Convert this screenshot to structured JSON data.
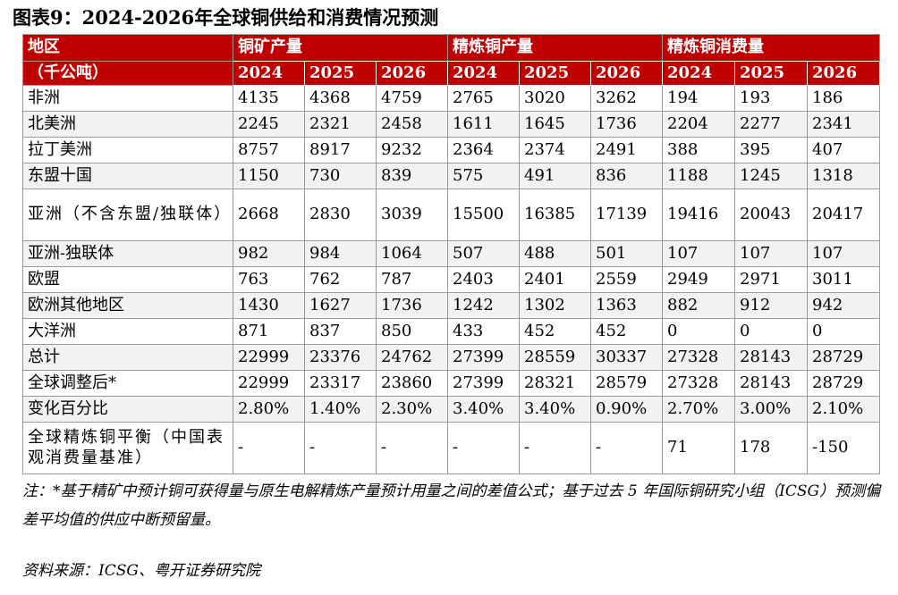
{
  "title": "图表9：2024-2026年全球铜供给和消费情况预测",
  "header": {
    "region_label_line1": "地区",
    "region_label_line2": "（千公吨）",
    "groups": [
      "铜矿产量",
      "精炼铜产量",
      "精炼铜消费量"
    ],
    "years": [
      "2024",
      "2025",
      "2026",
      "2024",
      "2025",
      "2026",
      "2024",
      "2025",
      "2026"
    ]
  },
  "rows": [
    {
      "region": "非洲",
      "values": [
        "4135",
        "4368",
        "4759",
        "2765",
        "3020",
        "3262",
        "194",
        "193",
        "186"
      ]
    },
    {
      "region": "北美洲",
      "values": [
        "2245",
        "2321",
        "2458",
        "1611",
        "1645",
        "1736",
        "2204",
        "2277",
        "2341"
      ]
    },
    {
      "region": "拉丁美洲",
      "values": [
        "8757",
        "8917",
        "9232",
        "2364",
        "2374",
        "2491",
        "388",
        "395",
        "407"
      ]
    },
    {
      "region": "东盟十国",
      "values": [
        "1150",
        "730",
        "839",
        "575",
        "491",
        "836",
        "1188",
        "1245",
        "1318"
      ]
    },
    {
      "region": "亚洲（不含东盟/独联体）",
      "values": [
        "2668",
        "2830",
        "3039",
        "15500",
        "16385",
        "17139",
        "19416",
        "20043",
        "20417"
      ]
    },
    {
      "region": "亚洲-独联体",
      "values": [
        "982",
        "984",
        "1064",
        "507",
        "488",
        "501",
        "107",
        "107",
        "107"
      ]
    },
    {
      "region": "欧盟",
      "values": [
        "763",
        "762",
        "787",
        "2403",
        "2401",
        "2559",
        "2949",
        "2971",
        "3011"
      ]
    },
    {
      "region": "欧洲其他地区",
      "values": [
        "1430",
        "1627",
        "1736",
        "1242",
        "1302",
        "1363",
        "882",
        "912",
        "942"
      ]
    },
    {
      "region": "大洋洲",
      "values": [
        "871",
        "837",
        "850",
        "433",
        "452",
        "452",
        "0",
        "0",
        "0"
      ]
    },
    {
      "region": "总计",
      "values": [
        "22999",
        "23376",
        "24762",
        "27399",
        "28559",
        "30337",
        "27328",
        "28143",
        "28729"
      ]
    },
    {
      "region": "全球调整后*",
      "values": [
        "22999",
        "23317",
        "23860",
        "27399",
        "28321",
        "28579",
        "27328",
        "28143",
        "28729"
      ]
    },
    {
      "region": "变化百分比",
      "values": [
        "2.80%",
        "1.40%",
        "2.30%",
        "3.40%",
        "3.40%",
        "0.90%",
        "2.70%",
        "3.00%",
        "2.10%"
      ]
    },
    {
      "region": "全球精炼铜平衡（中国表观消费量基准）",
      "values": [
        "-",
        "-",
        "-",
        "-",
        "-",
        "-",
        "71",
        "178",
        "-150"
      ]
    }
  ],
  "note": "注：*基于精矿中预计铜可获得量与原生电解精炼产量预计用量之间的差值公式；基于过去 5 年国际铜研究小组（ICSG）预测偏差平均值的供应中断预留量。",
  "source": "资料来源：ICSG、粤开证券研究院"
}
